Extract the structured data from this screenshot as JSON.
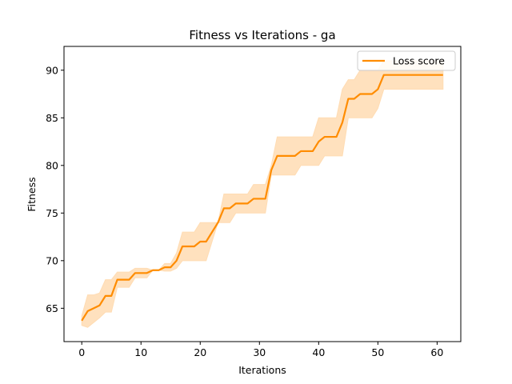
{
  "chart_data": {
    "type": "line",
    "title": "Fitness vs Iterations - ga",
    "xlabel": "Iterations",
    "ylabel": "Fitness",
    "xlim": [
      -3,
      64
    ],
    "ylim": [
      61.5,
      92.5
    ],
    "xticks": [
      0,
      10,
      20,
      30,
      40,
      50,
      60
    ],
    "yticks": [
      65,
      70,
      75,
      80,
      85,
      90
    ],
    "grid": false,
    "legend_position": "top-right",
    "colors": {
      "line": "#ff8c00",
      "band": "#ffdcb3"
    },
    "series": [
      {
        "name": "Loss score",
        "x": [
          0,
          1,
          2,
          3,
          4,
          5,
          6,
          7,
          8,
          9,
          10,
          11,
          12,
          13,
          14,
          15,
          16,
          17,
          18,
          19,
          20,
          21,
          22,
          23,
          24,
          25,
          26,
          27,
          28,
          29,
          30,
          31,
          32,
          33,
          34,
          35,
          36,
          37,
          38,
          39,
          40,
          41,
          42,
          43,
          44,
          45,
          46,
          47,
          48,
          49,
          50,
          51,
          52,
          53,
          54,
          55,
          56,
          57,
          58,
          59,
          60,
          61
        ],
        "values": [
          63.7,
          64.7,
          65.0,
          65.3,
          66.3,
          66.3,
          68.0,
          68.0,
          68.0,
          68.7,
          68.7,
          68.7,
          69.0,
          69.0,
          69.3,
          69.3,
          70.0,
          71.5,
          71.5,
          71.5,
          72.0,
          72.0,
          73.0,
          74.0,
          75.5,
          75.5,
          76.0,
          76.0,
          76.0,
          76.5,
          76.5,
          76.5,
          79.5,
          81.0,
          81.0,
          81.0,
          81.0,
          81.5,
          81.5,
          81.5,
          82.5,
          83.0,
          83.0,
          83.0,
          84.5,
          87.0,
          87.0,
          87.5,
          87.5,
          87.5,
          88.0,
          89.5,
          89.5,
          89.5,
          89.5,
          89.5,
          89.5,
          89.5,
          89.5,
          89.5,
          89.5,
          89.5
        ],
        "lower": [
          63.2,
          63.0,
          63.5,
          64.0,
          64.6,
          64.6,
          67.2,
          67.2,
          67.2,
          68.2,
          68.2,
          68.2,
          69.0,
          69.0,
          68.9,
          68.9,
          69.2,
          70.0,
          70.0,
          70.0,
          70.0,
          70.0,
          72.0,
          74.0,
          74.0,
          74.0,
          75.0,
          75.0,
          75.0,
          75.0,
          75.0,
          75.0,
          79.0,
          79.0,
          79.0,
          79.0,
          79.0,
          80.0,
          80.0,
          80.0,
          80.0,
          81.0,
          81.0,
          81.0,
          81.0,
          85.0,
          85.0,
          85.0,
          85.0,
          85.0,
          86.0,
          88.0,
          88.0,
          88.0,
          88.0,
          88.0,
          88.0,
          88.0,
          88.0,
          88.0,
          88.0,
          88.0
        ],
        "upper": [
          64.2,
          66.4,
          66.4,
          66.6,
          68.0,
          68.0,
          68.8,
          68.8,
          68.8,
          69.2,
          69.2,
          69.2,
          69.0,
          69.0,
          69.7,
          69.7,
          70.8,
          73.0,
          73.0,
          73.0,
          74.0,
          74.0,
          74.0,
          74.0,
          77.0,
          77.0,
          77.0,
          77.0,
          77.0,
          78.0,
          78.0,
          78.0,
          80.0,
          83.0,
          83.0,
          83.0,
          83.0,
          83.0,
          83.0,
          83.0,
          85.0,
          85.0,
          85.0,
          85.0,
          88.0,
          89.0,
          89.0,
          90.0,
          90.0,
          90.0,
          90.0,
          91.0,
          91.0,
          91.0,
          91.0,
          91.0,
          91.0,
          91.0,
          91.0,
          91.0,
          91.0,
          91.0
        ]
      }
    ]
  }
}
